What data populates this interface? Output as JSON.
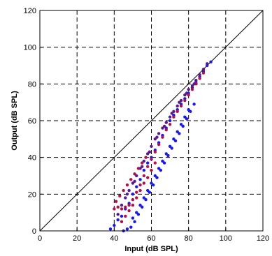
{
  "chart_data": {
    "type": "scatter",
    "title": "",
    "xlabel": "Input (dB SPL)",
    "ylabel": "Output (dB SPL)",
    "xlim": [
      0,
      120
    ],
    "ylim": [
      0,
      120
    ],
    "xticks": [
      0,
      20,
      40,
      60,
      80,
      100,
      120
    ],
    "yticks": [
      0,
      20,
      40,
      60,
      80,
      100,
      120
    ],
    "grid": true,
    "grid_style": "dashed",
    "reference_line": {
      "x": [
        0,
        120
      ],
      "y": [
        0,
        120
      ],
      "color": "#000000"
    },
    "series": [
      {
        "color": "#1a1ae6",
        "points": [
          [
            38,
            1
          ],
          [
            40,
            3
          ],
          [
            42,
            6
          ],
          [
            44,
            8
          ],
          [
            46,
            12
          ],
          [
            48,
            15
          ],
          [
            50,
            20
          ],
          [
            52,
            24
          ],
          [
            54,
            28
          ],
          [
            56,
            33
          ],
          [
            58,
            37
          ],
          [
            60,
            40
          ],
          [
            62,
            44
          ],
          [
            64,
            48
          ],
          [
            66,
            52
          ],
          [
            68,
            56
          ],
          [
            70,
            60
          ],
          [
            72,
            63
          ],
          [
            74,
            66
          ],
          [
            76,
            69
          ],
          [
            78,
            72
          ],
          [
            80,
            75
          ],
          [
            82,
            78
          ],
          [
            84,
            81
          ],
          [
            86,
            84
          ],
          [
            88,
            87
          ],
          [
            90,
            90
          ],
          [
            92,
            92
          ],
          [
            45,
            0
          ],
          [
            47,
            1
          ],
          [
            49,
            2
          ],
          [
            51,
            5
          ],
          [
            53,
            9
          ],
          [
            55,
            13
          ],
          [
            57,
            17
          ],
          [
            59,
            21
          ],
          [
            61,
            25
          ],
          [
            63,
            29
          ],
          [
            65,
            33
          ],
          [
            67,
            37
          ],
          [
            69,
            41
          ],
          [
            71,
            45
          ],
          [
            73,
            49
          ],
          [
            75,
            53
          ],
          [
            77,
            57
          ],
          [
            79,
            61
          ],
          [
            81,
            65
          ],
          [
            83,
            69
          ],
          [
            50,
            7
          ],
          [
            52,
            10
          ],
          [
            54,
            14
          ],
          [
            56,
            18
          ],
          [
            58,
            22
          ],
          [
            60,
            26
          ],
          [
            62,
            30
          ],
          [
            64,
            34
          ],
          [
            66,
            38
          ],
          [
            68,
            42
          ],
          [
            70,
            46
          ],
          [
            72,
            50
          ],
          [
            74,
            54
          ],
          [
            76,
            58
          ],
          [
            78,
            62
          ],
          [
            80,
            66
          ]
        ]
      },
      {
        "color": "#b0124a",
        "points": [
          [
            40,
            12
          ],
          [
            42,
            13
          ],
          [
            44,
            12
          ],
          [
            46,
            13
          ],
          [
            48,
            14
          ],
          [
            50,
            17
          ],
          [
            52,
            21
          ],
          [
            54,
            25
          ],
          [
            56,
            30
          ],
          [
            58,
            35
          ],
          [
            60,
            39
          ],
          [
            62,
            43
          ],
          [
            64,
            47
          ],
          [
            66,
            51
          ],
          [
            68,
            55
          ],
          [
            70,
            58
          ],
          [
            72,
            62
          ],
          [
            74,
            65
          ],
          [
            76,
            68
          ],
          [
            78,
            71
          ],
          [
            80,
            74
          ],
          [
            82,
            77
          ],
          [
            84,
            80
          ],
          [
            86,
            83
          ],
          [
            88,
            86
          ],
          [
            41,
            16
          ],
          [
            43,
            19
          ],
          [
            45,
            22
          ],
          [
            47,
            25
          ],
          [
            49,
            28
          ],
          [
            51,
            31
          ],
          [
            53,
            34
          ],
          [
            55,
            37
          ],
          [
            57,
            40
          ],
          [
            59,
            43
          ],
          [
            44,
            5
          ],
          [
            46,
            8
          ],
          [
            48,
            11
          ],
          [
            50,
            14
          ],
          [
            52,
            18
          ],
          [
            54,
            22
          ],
          [
            56,
            26
          ],
          [
            58,
            29
          ],
          [
            60,
            33
          ],
          [
            62,
            37
          ]
        ]
      },
      {
        "color": "#5a1a8c",
        "points": [
          [
            42,
            9
          ],
          [
            44,
            14
          ],
          [
            46,
            18
          ],
          [
            48,
            22
          ],
          [
            50,
            26
          ],
          [
            52,
            30
          ],
          [
            54,
            34
          ],
          [
            56,
            38
          ],
          [
            58,
            42
          ],
          [
            60,
            46
          ],
          [
            62,
            50
          ],
          [
            64,
            53
          ],
          [
            66,
            56
          ],
          [
            68,
            59
          ],
          [
            70,
            62
          ],
          [
            72,
            65
          ],
          [
            74,
            68
          ],
          [
            76,
            71
          ],
          [
            78,
            74
          ],
          [
            80,
            77
          ],
          [
            82,
            79
          ],
          [
            84,
            82
          ],
          [
            86,
            85
          ],
          [
            88,
            88
          ],
          [
            90,
            91
          ],
          [
            47,
            20
          ],
          [
            51,
            27
          ],
          [
            55,
            35
          ],
          [
            59,
            43
          ],
          [
            63,
            51
          ],
          [
            67,
            57
          ],
          [
            71,
            64
          ],
          [
            75,
            70
          ],
          [
            79,
            75
          ],
          [
            83,
            80
          ]
        ]
      }
    ]
  }
}
